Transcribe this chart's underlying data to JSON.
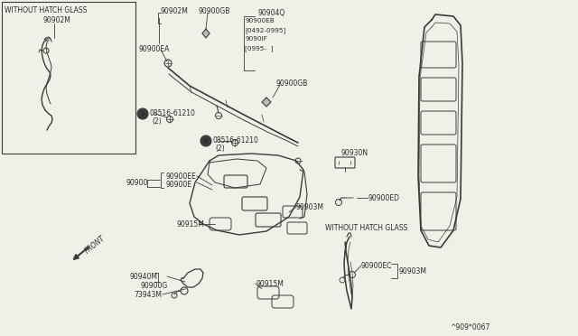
{
  "bg_color": "#f0efe8",
  "line_color": "#3a3a3a",
  "text_color": "#2a2a2a",
  "fig_width": 6.4,
  "fig_height": 3.72,
  "dpi": 100,
  "labels": {
    "without_hatch_glass_top": "WITHOUT HATCH GLASS",
    "part_90902M_top": "90902M",
    "part_90902M_2": "90902M",
    "part_90900GB_1": "90900GB",
    "part_90900EA": "90900EA",
    "part_90904Q": "90904Q",
    "part_90900EB": "90900EB",
    "part_0492": "[0492-0995]",
    "part_90901F": "9090IF",
    "part_0995": "[0995-  ]",
    "part_90900GB_2": "90900GB",
    "part_08516_1": "08516-61210",
    "part_08516_1b": "(2)",
    "part_08516_2": "08516-61210",
    "part_08516_2b": "(2)",
    "part_S": "S",
    "part_90900EE": "90900EE",
    "part_90900E": "90900E",
    "part_90900": "90900",
    "part_90903M": "90903M",
    "part_90930N": "90930N",
    "part_90900ED": "90900ED",
    "part_FRONT": "FRONT",
    "part_90915M_1": "90915M",
    "part_90915M_2": "90915M",
    "part_90940M": "90940M",
    "part_90900G": "90900G",
    "part_73943M": "73943M",
    "without_hatch_glass_bot": "WITHOUT HATCH GLASS",
    "part_90900EC": "90900EC",
    "part_90903M_2": "90903M",
    "diagram_code": "^909*0067"
  }
}
